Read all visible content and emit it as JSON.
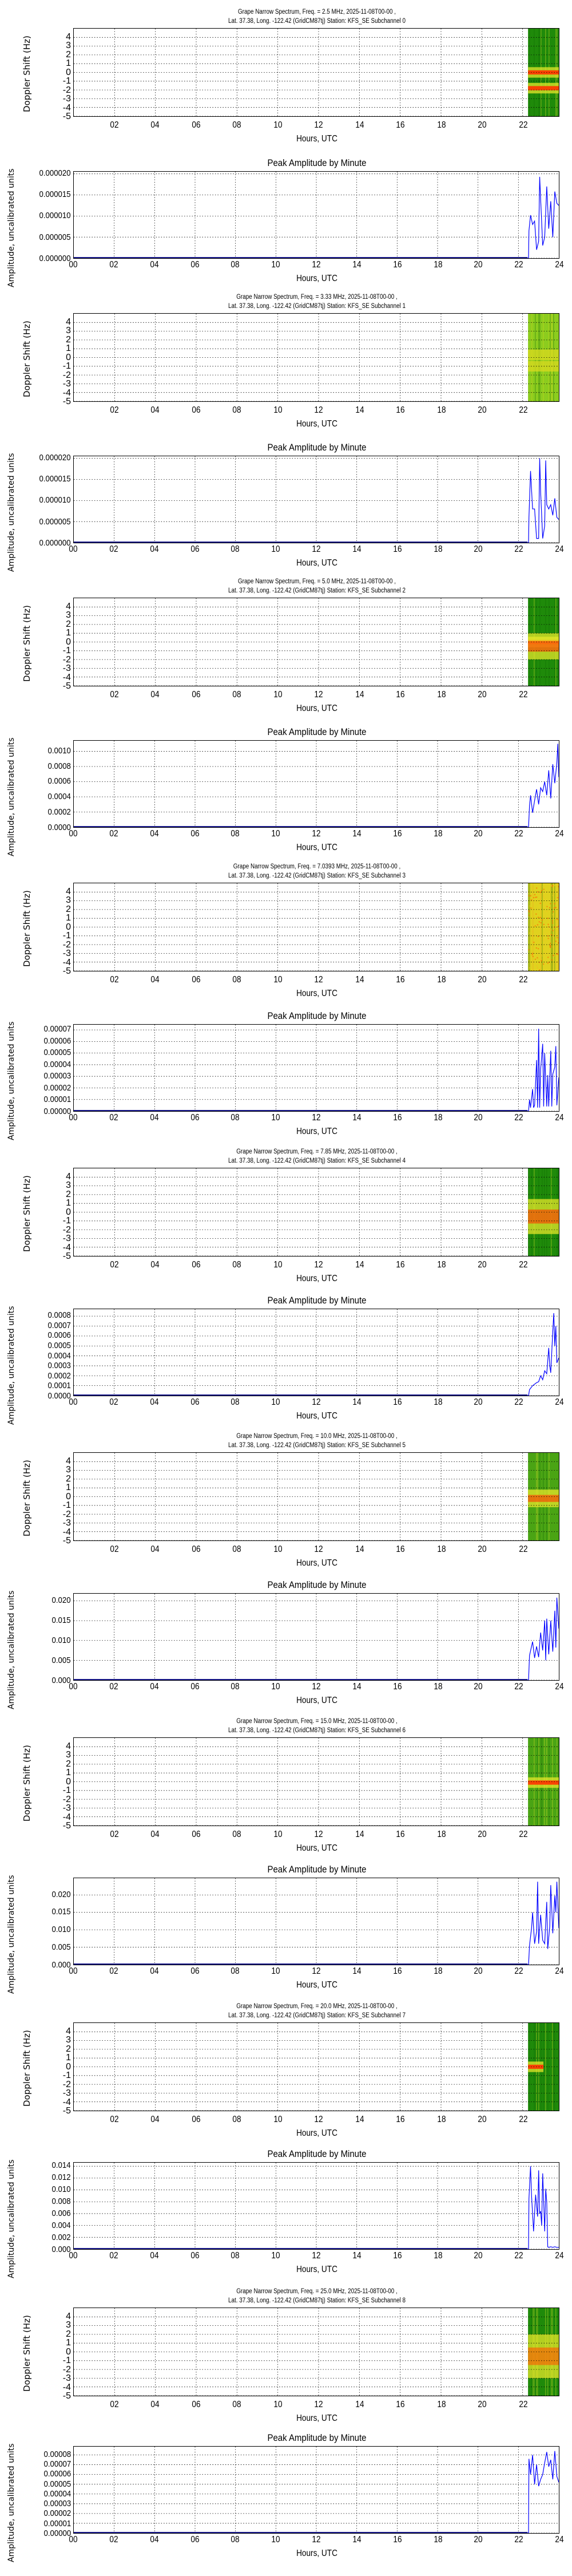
{
  "common": {
    "spectrum_title_line2": "Lat.  37.38, Long. -122.42 (GridCM87tj) Station: KFS_SE Subchannel",
    "amp_title": "Peak Amplitude by Minute",
    "spec_ylabel": "Doppler Shift (Hz)",
    "amp_ylabel": "Amplitude, uncalibrated units",
    "xlabel": "Hours, UTC",
    "spec_yticks": [
      "4",
      "3",
      "2",
      "1",
      "0",
      "-1",
      "-2",
      "-3",
      "-4",
      "-5"
    ],
    "spec_xticks": [
      "02",
      "04",
      "06",
      "08",
      "10",
      "12",
      "14",
      "16",
      "18",
      "20",
      "22"
    ],
    "amp_xticks": [
      "00",
      "02",
      "04",
      "06",
      "08",
      "10",
      "12",
      "14",
      "16",
      "18",
      "20",
      "22",
      "24"
    ],
    "line_color": "#0000ff",
    "grid_color": "#000000"
  },
  "panels": [
    {
      "line1": "Grape Narrow Spectrum, Freq. = 2.5 MHz, 2025-11-08T00-00 ,",
      "line2": "Lat.  37.38, Long. -122.42 (GridCM87tj) Station: KFS_SE Subchannel 0",
      "amp_yticks": [
        "0.000020",
        "0.000015",
        "0.000010",
        "0.000005",
        "0.000000"
      ]
    },
    {
      "line1": "Grape Narrow Spectrum, Freq. = 3.33 MHz, 2025-11-08T00-00 ,",
      "line2": "Lat.  37.38, Long. -122.42 (GridCM87tj) Station: KFS_SE Subchannel 1",
      "amp_yticks": [
        "0.000020",
        "0.000015",
        "0.000010",
        "0.000005",
        "0.000000"
      ]
    },
    {
      "line1": "Grape Narrow Spectrum, Freq. = 5.0 MHz, 2025-11-08T00-00 ,",
      "line2": "Lat.  37.38, Long. -122.42 (GridCM87tj) Station: KFS_SE Subchannel 2",
      "amp_yticks": [
        "0.0010",
        "0.0008",
        "0.0006",
        "0.0004",
        "0.0002",
        "0.0000"
      ]
    },
    {
      "line1": "Grape Narrow Spectrum, Freq. = 7.0393 MHz, 2025-11-08T00-00 ,",
      "line2": "Lat.  37.38, Long. -122.42 (GridCM87tj) Station: KFS_SE Subchannel 3",
      "amp_yticks": [
        "0.00007",
        "0.00006",
        "0.00005",
        "0.00004",
        "0.00003",
        "0.00002",
        "0.00001",
        "0.00000"
      ]
    },
    {
      "line1": "Grape Narrow Spectrum, Freq. = 7.85 MHz, 2025-11-08T00-00 ,",
      "line2": "Lat.  37.38, Long. -122.42 (GridCM87tj) Station: KFS_SE Subchannel 4",
      "amp_yticks": [
        "0.0008",
        "0.0007",
        "0.0006",
        "0.0005",
        "0.0004",
        "0.0003",
        "0.0002",
        "0.0001",
        "0.0000"
      ]
    },
    {
      "line1": "Grape Narrow Spectrum, Freq. = 10.0 MHz, 2025-11-08T00-00 ,",
      "line2": "Lat.  37.38, Long. -122.42 (GridCM87tj) Station: KFS_SE Subchannel 5",
      "amp_yticks": [
        "0.020",
        "0.015",
        "0.010",
        "0.005",
        "0.000"
      ]
    },
    {
      "line1": "Grape Narrow Spectrum, Freq. = 15.0 MHz, 2025-11-08T00-00 ,",
      "line2": "Lat.  37.38, Long. -122.42 (GridCM87tj) Station: KFS_SE Subchannel 6",
      "amp_yticks": [
        "0.020",
        "0.015",
        "0.010",
        "0.005",
        "0.000"
      ]
    },
    {
      "line1": "Grape Narrow Spectrum, Freq. = 20.0 MHz, 2025-11-08T00-00 ,",
      "line2": "Lat.  37.38, Long. -122.42 (GridCM87tj) Station: KFS_SE Subchannel 7",
      "amp_yticks": [
        "0.014",
        "0.012",
        "0.010",
        "0.008",
        "0.006",
        "0.004",
        "0.002",
        "0.000"
      ]
    },
    {
      "line1": "Grape Narrow Spectrum, Freq. = 25.0 MHz, 2025-11-08T00-00 ,",
      "line2": "Lat.  37.38, Long. -122.42 (GridCM87tj) Station: KFS_SE Subchannel 8",
      "amp_yticks": [
        "0.00008",
        "0.00007",
        "0.00006",
        "0.00005",
        "0.00004",
        "0.00003",
        "0.00002",
        "0.00001",
        "0.00000"
      ]
    }
  ],
  "chart_data": [
    {
      "type": "heatmap",
      "title": "Grape Narrow Spectrum, Freq. = 2.5 MHz, 2025-11-08T00-00 , Lat. 37.38, Long. -122.42 (GridCM87tj) Station: KFS_SE Subchannel 0",
      "xlabel": "Hours, UTC",
      "ylabel": "Doppler Shift (Hz)",
      "xlim": [
        0,
        24
      ],
      "ylim": [
        -5,
        5
      ],
      "grid": true,
      "data_start_hour": 22.4,
      "colors": {
        "background": "#1f8a0a",
        "mid": "#e6e62a",
        "peak": "#ff3300"
      },
      "features": [
        {
          "doppler_hz": 0.0,
          "intensity": "peak"
        },
        {
          "doppler_hz": -1.8,
          "intensity": "high"
        }
      ]
    },
    {
      "type": "line",
      "title": "Peak Amplitude by Minute",
      "subchannel": 0,
      "freq_mhz": 2.5,
      "xlabel": "Hours, UTC",
      "ylabel": "Amplitude, uncalibrated units",
      "xlim": [
        0,
        24
      ],
      "ylim": [
        0,
        2.05e-05
      ],
      "grid": true,
      "x": [
        0,
        22.5,
        22.52,
        22.6,
        22.7,
        22.8,
        22.9,
        23.0,
        23.05,
        23.1,
        23.2,
        23.3,
        23.4,
        23.5,
        23.6,
        23.7,
        23.8,
        23.9,
        24.0
      ],
      "values": [
        0,
        0,
        6.5e-06,
        1.02e-05,
        8e-06,
        8.8e-06,
        2e-06,
        4e-06,
        1.93e-05,
        1.4e-05,
        3e-06,
        5e-06,
        1.7e-05,
        7e-06,
        1.35e-05,
        5e-06,
        1.58e-05,
        1.3e-05,
        1.25e-05
      ]
    },
    {
      "type": "heatmap",
      "title": "Grape Narrow Spectrum, Freq. = 3.33 MHz, 2025-11-08T00-00 , Lat. 37.38, Long. -122.42 (GridCM87tj) Station: KFS_SE Subchannel 1",
      "xlabel": "Hours, UTC",
      "ylabel": "Doppler Shift (Hz)",
      "xlim": [
        0,
        24
      ],
      "ylim": [
        -5,
        5
      ],
      "grid": true,
      "data_start_hour": 22.4,
      "colors": {
        "background": "#8ccc1e",
        "mid": "#d9d91f",
        "peak": "#ff6600"
      },
      "features": [
        {
          "doppler_hz": 0.3,
          "intensity": "medium"
        },
        {
          "doppler_hz": -1.0,
          "intensity": "medium"
        }
      ]
    },
    {
      "type": "line",
      "title": "Peak Amplitude by Minute",
      "subchannel": 1,
      "freq_mhz": 3.33,
      "xlabel": "Hours, UTC",
      "ylabel": "Amplitude, uncalibrated units",
      "xlim": [
        0,
        24
      ],
      "ylim": [
        0,
        2.05e-05
      ],
      "grid": true,
      "x": [
        0,
        22.5,
        22.52,
        22.6,
        22.7,
        22.8,
        22.9,
        23.0,
        23.05,
        23.1,
        23.2,
        23.3,
        23.35,
        23.4,
        23.5,
        23.6,
        23.7,
        23.8,
        23.9,
        24.0
      ],
      "values": [
        0,
        0,
        6e-06,
        1.7e-05,
        8e-06,
        8e-06,
        1e-06,
        1e-06,
        2e-05,
        1.2e-05,
        1e-06,
        4e-06,
        1.95e-05,
        9e-06,
        8e-06,
        9e-06,
        6.5e-06,
        1.05e-05,
        6e-06,
        5.5e-06
      ]
    },
    {
      "type": "heatmap",
      "title": "Grape Narrow Spectrum, Freq. = 5.0 MHz, 2025-11-08T00-00 , Lat. 37.38, Long. -122.42 (GridCM87tj) Station: KFS_SE Subchannel 2",
      "xlabel": "Hours, UTC",
      "ylabel": "Doppler Shift (Hz)",
      "xlim": [
        0,
        24
      ],
      "ylim": [
        -5,
        5
      ],
      "grid": true,
      "data_start_hour": 22.4,
      "colors": {
        "background": "#1f8a0a",
        "mid": "#e6e62a",
        "peak": "#ff3300"
      },
      "features": [
        {
          "doppler_hz": 0.0,
          "intensity": "peak"
        },
        {
          "doppler_hz": -0.5,
          "intensity": "high",
          "spread_hz": 1.5
        }
      ]
    },
    {
      "type": "line",
      "title": "Peak Amplitude by Minute",
      "subchannel": 2,
      "freq_mhz": 5.0,
      "xlabel": "Hours, UTC",
      "ylabel": "Amplitude, uncalibrated units",
      "xlim": [
        0,
        24
      ],
      "ylim": [
        0,
        0.00114
      ],
      "grid": true,
      "x": [
        0,
        22.5,
        22.55,
        22.6,
        22.7,
        22.8,
        22.9,
        23.0,
        23.1,
        23.2,
        23.3,
        23.4,
        23.5,
        23.6,
        23.7,
        23.8,
        23.9,
        23.95,
        24.0
      ],
      "values": [
        0,
        0,
        0.00028,
        0.00042,
        0.00019,
        0.00035,
        0.0005,
        0.0003,
        0.00052,
        0.00047,
        0.0006,
        0.00042,
        0.00075,
        0.00038,
        0.00083,
        0.00058,
        0.00085,
        0.0011,
        0.00066
      ]
    },
    {
      "type": "heatmap",
      "title": "Grape Narrow Spectrum, Freq. = 7.0393 MHz, 2025-11-08T00-00 , Lat. 37.38, Long. -122.42 (GridCM87tj) Station: KFS_SE Subchannel 3",
      "xlabel": "Hours, UTC",
      "ylabel": "Doppler Shift (Hz)",
      "xlim": [
        0,
        24
      ],
      "ylim": [
        -5,
        5
      ],
      "grid": true,
      "data_start_hour": 22.4,
      "colors": {
        "background": "#e0d21e",
        "mid": "#f0a020",
        "peak": "#ff6600"
      },
      "features": [
        {
          "doppler_hz": null,
          "intensity": "broadband"
        }
      ]
    },
    {
      "type": "line",
      "title": "Peak Amplitude by Minute",
      "subchannel": 3,
      "freq_mhz": 7.0393,
      "xlabel": "Hours, UTC",
      "ylabel": "Amplitude, uncalibrated units",
      "xlim": [
        0,
        24
      ],
      "ylim": [
        0,
        7.45e-05
      ],
      "grid": true,
      "x": [
        0,
        22.5,
        22.55,
        22.6,
        22.7,
        22.75,
        22.8,
        22.9,
        22.95,
        23.0,
        23.05,
        23.1,
        23.2,
        23.25,
        23.3,
        23.4,
        23.45,
        23.5,
        23.6,
        23.65,
        23.7,
        23.8,
        23.85,
        23.9,
        24.0
      ],
      "values": [
        0,
        0,
        1e-05,
        3e-06,
        1.9e-05,
        3e-06,
        5e-06,
        4.4e-05,
        3e-06,
        7.1e-05,
        3e-06,
        3.6e-05,
        5.8e-05,
        4e-06,
        5e-05,
        4e-06,
        3.1e-05,
        4e-06,
        5.2e-05,
        4e-06,
        3.2e-05,
        3.8e-05,
        5.6e-05,
        5e-06,
        2.9e-05
      ]
    },
    {
      "type": "heatmap",
      "title": "Grape Narrow Spectrum, Freq. = 7.85 MHz, 2025-11-08T00-00 , Lat. 37.38, Long. -122.42 (GridCM87tj) Station: KFS_SE Subchannel 4",
      "xlabel": "Hours, UTC",
      "ylabel": "Doppler Shift (Hz)",
      "xlim": [
        0,
        24
      ],
      "ylim": [
        -5,
        5
      ],
      "grid": true,
      "data_start_hour": 22.4,
      "colors": {
        "background": "#1f8a0a",
        "mid": "#e6e62a",
        "peak": "#ff3300"
      },
      "features": [
        {
          "doppler_hz": -0.5,
          "intensity": "peak",
          "spread_hz": 2.0
        }
      ]
    },
    {
      "type": "line",
      "title": "Peak Amplitude by Minute",
      "subchannel": 4,
      "freq_mhz": 7.85,
      "xlabel": "Hours, UTC",
      "ylabel": "Amplitude, uncalibrated units",
      "xlim": [
        0,
        24
      ],
      "ylim": [
        0,
        0.00087
      ],
      "grid": true,
      "x": [
        0,
        22.5,
        22.55,
        22.7,
        22.9,
        23.0,
        23.1,
        23.2,
        23.3,
        23.4,
        23.5,
        23.55,
        23.6,
        23.7,
        23.75,
        23.8,
        23.85,
        23.9,
        24.0
      ],
      "values": [
        0,
        0,
        6e-05,
        0.0001,
        0.00013,
        0.00014,
        0.0002,
        0.00016,
        0.00025,
        0.00022,
        0.00048,
        0.0003,
        0.00023,
        0.00065,
        0.00083,
        0.0005,
        0.0007,
        0.00033,
        0.00038
      ]
    },
    {
      "type": "heatmap",
      "title": "Grape Narrow Spectrum, Freq. = 10.0 MHz, 2025-11-08T00-00 , Lat. 37.38, Long. -122.42 (GridCM87tj) Station: KFS_SE Subchannel 5",
      "xlabel": "Hours, UTC",
      "ylabel": "Doppler Shift (Hz)",
      "xlim": [
        0,
        24
      ],
      "ylim": [
        -5,
        5
      ],
      "grid": true,
      "data_start_hour": 22.4,
      "colors": {
        "background": "#4aa414",
        "mid": "#e6e62a",
        "peak": "#ff3300"
      },
      "features": [
        {
          "doppler_hz": -0.2,
          "intensity": "peak",
          "spread_hz": 1.0
        }
      ]
    },
    {
      "type": "line",
      "title": "Peak Amplitude by Minute",
      "subchannel": 5,
      "freq_mhz": 10.0,
      "xlabel": "Hours, UTC",
      "ylabel": "Amplitude, uncalibrated units",
      "xlim": [
        0,
        24
      ],
      "ylim": [
        0,
        0.0218
      ],
      "grid": true,
      "x": [
        0,
        22.5,
        22.55,
        22.7,
        22.8,
        22.9,
        23.0,
        23.1,
        23.2,
        23.3,
        23.35,
        23.4,
        23.5,
        23.6,
        23.7,
        23.8,
        23.85,
        23.9,
        24.0
      ],
      "values": [
        0,
        0,
        0.0062,
        0.0097,
        0.0056,
        0.0085,
        0.0058,
        0.012,
        0.0075,
        0.015,
        0.005,
        0.0155,
        0.0065,
        0.015,
        0.0072,
        0.0175,
        0.0082,
        0.0208,
        0.013
      ]
    },
    {
      "type": "heatmap",
      "title": "Grape Narrow Spectrum, Freq. = 15.0 MHz, 2025-11-08T00-00 , Lat. 37.38, Long. -122.42 (GridCM87tj) Station: KFS_SE Subchannel 6",
      "xlabel": "Hours, UTC",
      "ylabel": "Doppler Shift (Hz)",
      "xlim": [
        0,
        24
      ],
      "ylim": [
        -5,
        5
      ],
      "grid": true,
      "data_start_hour": 22.4,
      "colors": {
        "background": "#4aa414",
        "mid": "#e6e62a",
        "peak": "#ff3300"
      },
      "features": [
        {
          "doppler_hz": -0.1,
          "intensity": "peak",
          "trace": "wavy"
        }
      ]
    },
    {
      "type": "line",
      "title": "Peak Amplitude by Minute",
      "subchannel": 6,
      "freq_mhz": 15.0,
      "xlabel": "Hours, UTC",
      "ylabel": "Amplitude, uncalibrated units",
      "xlim": [
        0,
        24
      ],
      "ylim": [
        0,
        0.0248
      ],
      "grid": true,
      "x": [
        0,
        22.5,
        22.55,
        22.65,
        22.7,
        22.8,
        22.9,
        22.95,
        23.0,
        23.1,
        23.2,
        23.3,
        23.4,
        23.45,
        23.55,
        23.6,
        23.7,
        23.8,
        23.85,
        23.9,
        24.0
      ],
      "values": [
        0,
        0,
        0.0055,
        0.0105,
        0.015,
        0.006,
        0.0095,
        0.0238,
        0.006,
        0.0143,
        0.007,
        0.006,
        0.018,
        0.0045,
        0.011,
        0.0228,
        0.009,
        0.0198,
        0.015,
        0.0238,
        0.0105
      ]
    },
    {
      "type": "heatmap",
      "title": "Grape Narrow Spectrum, Freq. = 20.0 MHz, 2025-11-08T00-00 , Lat. 37.38, Long. -122.42 (GridCM87tj) Station: KFS_SE Subchannel 7",
      "xlabel": "Hours, UTC",
      "ylabel": "Doppler Shift (Hz)",
      "xlim": [
        0,
        24
      ],
      "ylim": [
        -5,
        5
      ],
      "grid": true,
      "data_start_hour": 22.4,
      "colors": {
        "background": "#1f8a0a",
        "mid": "#e6e62a",
        "peak": "#ff3300"
      },
      "features": [
        {
          "doppler_hz": 0.0,
          "intensity": "peak",
          "trace": "wavy",
          "end_hour": 23.2
        }
      ]
    },
    {
      "type": "line",
      "title": "Peak Amplitude by Minute",
      "subchannel": 7,
      "freq_mhz": 20.0,
      "xlabel": "Hours, UTC",
      "ylabel": "Amplitude, uncalibrated units",
      "xlim": [
        0,
        24
      ],
      "ylim": [
        0,
        0.0146
      ],
      "grid": true,
      "x": [
        0,
        22.5,
        22.52,
        22.6,
        22.65,
        22.75,
        22.85,
        22.95,
        23.0,
        23.05,
        23.1,
        23.15,
        23.2,
        23.3,
        23.35,
        23.4,
        23.45,
        23.5,
        23.6,
        23.7,
        23.8,
        23.9,
        24.0
      ],
      "values": [
        0,
        0,
        0.0085,
        0.014,
        0.009,
        0.003,
        0.0092,
        0.0055,
        0.0133,
        0.006,
        0.0064,
        0.004,
        0.0128,
        0.003,
        0.0102,
        0.008,
        0.0004,
        0.0003,
        0.0004,
        0.0003,
        0.0004,
        0.0003,
        0.0003
      ]
    },
    {
      "type": "heatmap",
      "title": "Grape Narrow Spectrum, Freq. = 25.0 MHz, 2025-11-08T00-00 , Lat. 37.38, Long. -122.42 (GridCM87tj) Station: KFS_SE Subchannel 8",
      "xlabel": "Hours, UTC",
      "ylabel": "Doppler Shift (Hz)",
      "xlim": [
        0,
        24
      ],
      "ylim": [
        -5,
        5
      ],
      "grid": true,
      "data_start_hour": 22.4,
      "colors": {
        "background": "#1f8a0a",
        "mid": "#e6e62a",
        "peak": "#ff5500"
      },
      "features": [
        {
          "doppler_hz": -0.5,
          "intensity": "peak",
          "spread_hz": 2.5
        }
      ]
    },
    {
      "type": "line",
      "title": "Peak Amplitude by Minute",
      "subchannel": 8,
      "freq_mhz": 25.0,
      "xlabel": "Hours, UTC",
      "ylabel": "Amplitude, uncalibrated units",
      "xlim": [
        0,
        24
      ],
      "ylim": [
        0,
        8.85e-05
      ],
      "grid": true,
      "x": [
        0,
        22.5,
        22.52,
        22.6,
        22.7,
        22.8,
        22.9,
        23.0,
        23.1,
        23.2,
        23.3,
        23.4,
        23.5,
        23.6,
        23.7,
        23.8,
        23.9,
        24.0
      ],
      "values": [
        0,
        0,
        7.6e-05,
        6e-05,
        8e-05,
        5e-05,
        7e-05,
        4.8e-05,
        5.5e-05,
        6e-05,
        7.2e-05,
        8.3e-05,
        6.8e-05,
        7.5e-05,
        5.5e-05,
        8.4e-05,
        5.8e-05,
        5.2e-05
      ]
    }
  ]
}
